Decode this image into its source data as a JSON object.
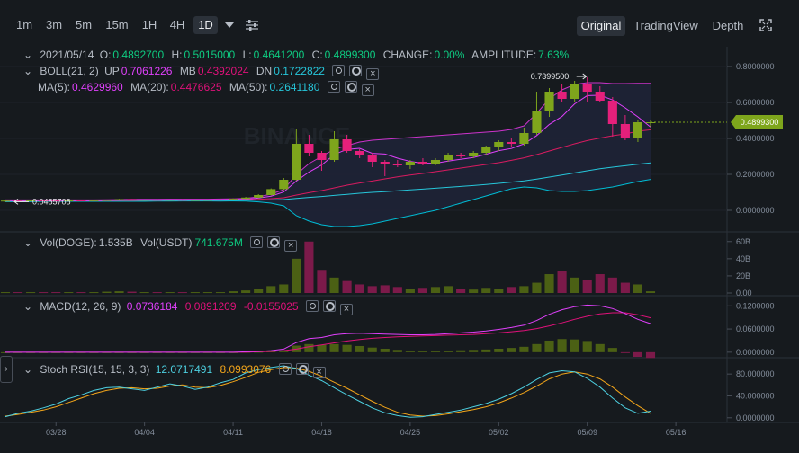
{
  "toolbar": {
    "timeframes": [
      "1m",
      "3m",
      "5m",
      "15m",
      "1H",
      "4H",
      "1D"
    ],
    "active_timeframe": "1D",
    "views": [
      "Original",
      "TradingView",
      "Depth"
    ],
    "active_view": "Original"
  },
  "ohlc": {
    "date": "2021/05/14",
    "o_label": "O:",
    "o": "0.4892700",
    "h_label": "H:",
    "h": "0.5015000",
    "l_label": "L:",
    "l": "0.4641200",
    "c_label": "C:",
    "c": "0.4899300",
    "change_label": "CHANGE:",
    "change": "0.00%",
    "amplitude_label": "AMPLITUDE:",
    "amplitude": "7.63%"
  },
  "boll": {
    "name": "BOLL(21, 2)",
    "up_label": "UP",
    "up": "0.7061226",
    "mb_label": "MB",
    "mb": "0.4392024",
    "dn_label": "DN",
    "dn": "0.1722822"
  },
  "ma": {
    "ma5_label": "MA(5):",
    "ma5": "0.4629960",
    "ma20_label": "MA(20):",
    "ma20": "0.4476625",
    "ma50_label": "MA(50):",
    "ma50": "0.2641180"
  },
  "vol": {
    "doge_label": "Vol(DOGE):",
    "doge": "1.535B",
    "usdt_label": "Vol(USDT)",
    "usdt": "741.675M"
  },
  "macd": {
    "name": "MACD(12, 26, 9)",
    "dif": "0.0736184",
    "dea": "0.0891209",
    "hist": "-0.0155025"
  },
  "stoch": {
    "name": "Stoch RSI(15, 15, 3, 3)",
    "k": "12.0717491",
    "d": "8.0993076"
  },
  "annotations": {
    "high_marker": "0.7399500",
    "low_marker": "0.0485708",
    "last_price": "0.4899300"
  },
  "colors": {
    "up": "#7ea51c",
    "down": "#e4207b",
    "boll": "#cc33cc",
    "mb": "#e0117a",
    "dn": "#00bcd4",
    "ma5": "#e040fb",
    "ma20": "#d81b60",
    "ma50": "#26c6da",
    "k": "#4dd0e1",
    "d": "#f2a51a"
  },
  "chart_data": [
    {
      "type": "candlestick",
      "title": "",
      "x_tick_labels": [
        "03/28",
        "04/04",
        "04/11",
        "04/18",
        "04/25",
        "05/02",
        "05/09",
        "05/16"
      ],
      "y_tick_labels": [
        "0.0000000",
        "0.2000000",
        "0.4000000",
        "0.6000000",
        "0.8000000"
      ],
      "ylim": [
        -0.08,
        0.86
      ],
      "candles": [
        {
          "date": "03/24",
          "o": 0.052,
          "h": 0.056,
          "l": 0.048,
          "c": 0.054
        },
        {
          "date": "03/25",
          "o": 0.054,
          "h": 0.057,
          "l": 0.05,
          "c": 0.053
        },
        {
          "date": "03/26",
          "o": 0.053,
          "h": 0.056,
          "l": 0.051,
          "c": 0.055
        },
        {
          "date": "03/27",
          "o": 0.055,
          "h": 0.057,
          "l": 0.052,
          "c": 0.054
        },
        {
          "date": "03/28",
          "o": 0.054,
          "h": 0.056,
          "l": 0.051,
          "c": 0.053
        },
        {
          "date": "03/29",
          "o": 0.053,
          "h": 0.056,
          "l": 0.051,
          "c": 0.055
        },
        {
          "date": "03/30",
          "o": 0.055,
          "h": 0.057,
          "l": 0.052,
          "c": 0.054
        },
        {
          "date": "03/31",
          "o": 0.054,
          "h": 0.057,
          "l": 0.052,
          "c": 0.056
        },
        {
          "date": "04/01",
          "o": 0.056,
          "h": 0.06,
          "l": 0.054,
          "c": 0.058
        },
        {
          "date": "04/02",
          "o": 0.058,
          "h": 0.064,
          "l": 0.056,
          "c": 0.062
        },
        {
          "date": "04/03",
          "o": 0.062,
          "h": 0.063,
          "l": 0.056,
          "c": 0.058
        },
        {
          "date": "04/04",
          "o": 0.058,
          "h": 0.06,
          "l": 0.055,
          "c": 0.059
        },
        {
          "date": "04/05",
          "o": 0.059,
          "h": 0.061,
          "l": 0.056,
          "c": 0.057
        },
        {
          "date": "04/06",
          "o": 0.057,
          "h": 0.06,
          "l": 0.055,
          "c": 0.059
        },
        {
          "date": "04/07",
          "o": 0.059,
          "h": 0.061,
          "l": 0.054,
          "c": 0.056
        },
        {
          "date": "04/08",
          "o": 0.056,
          "h": 0.059,
          "l": 0.055,
          "c": 0.058
        },
        {
          "date": "04/09",
          "o": 0.058,
          "h": 0.06,
          "l": 0.056,
          "c": 0.059
        },
        {
          "date": "04/10",
          "o": 0.059,
          "h": 0.062,
          "l": 0.057,
          "c": 0.06
        },
        {
          "date": "04/11",
          "o": 0.06,
          "h": 0.067,
          "l": 0.058,
          "c": 0.064
        },
        {
          "date": "04/12",
          "o": 0.064,
          "h": 0.075,
          "l": 0.062,
          "c": 0.071
        },
        {
          "date": "04/13",
          "o": 0.071,
          "h": 0.09,
          "l": 0.068,
          "c": 0.085
        },
        {
          "date": "04/14",
          "o": 0.085,
          "h": 0.122,
          "l": 0.083,
          "c": 0.118
        },
        {
          "date": "04/15",
          "o": 0.118,
          "h": 0.18,
          "l": 0.112,
          "c": 0.17
        },
        {
          "date": "04/16",
          "o": 0.17,
          "h": 0.45,
          "l": 0.165,
          "c": 0.37
        },
        {
          "date": "04/17",
          "o": 0.37,
          "h": 0.42,
          "l": 0.3,
          "c": 0.32
        },
        {
          "date": "04/18",
          "o": 0.32,
          "h": 0.33,
          "l": 0.22,
          "c": 0.28
        },
        {
          "date": "04/19",
          "o": 0.28,
          "h": 0.44,
          "l": 0.27,
          "c": 0.395
        },
        {
          "date": "04/20",
          "o": 0.395,
          "h": 0.42,
          "l": 0.32,
          "c": 0.33
        },
        {
          "date": "04/21",
          "o": 0.33,
          "h": 0.34,
          "l": 0.29,
          "c": 0.31
        },
        {
          "date": "04/22",
          "o": 0.31,
          "h": 0.32,
          "l": 0.24,
          "c": 0.27
        },
        {
          "date": "04/23",
          "o": 0.27,
          "h": 0.28,
          "l": 0.19,
          "c": 0.26
        },
        {
          "date": "04/24",
          "o": 0.26,
          "h": 0.28,
          "l": 0.24,
          "c": 0.25
        },
        {
          "date": "04/25",
          "o": 0.25,
          "h": 0.28,
          "l": 0.23,
          "c": 0.27
        },
        {
          "date": "04/26",
          "o": 0.27,
          "h": 0.29,
          "l": 0.25,
          "c": 0.26
        },
        {
          "date": "04/27",
          "o": 0.26,
          "h": 0.29,
          "l": 0.25,
          "c": 0.28
        },
        {
          "date": "04/28",
          "o": 0.28,
          "h": 0.32,
          "l": 0.27,
          "c": 0.31
        },
        {
          "date": "04/29",
          "o": 0.31,
          "h": 0.32,
          "l": 0.29,
          "c": 0.3
        },
        {
          "date": "04/30",
          "o": 0.3,
          "h": 0.33,
          "l": 0.29,
          "c": 0.32
        },
        {
          "date": "05/01",
          "o": 0.32,
          "h": 0.36,
          "l": 0.31,
          "c": 0.35
        },
        {
          "date": "05/02",
          "o": 0.35,
          "h": 0.39,
          "l": 0.33,
          "c": 0.38
        },
        {
          "date": "05/03",
          "o": 0.38,
          "h": 0.4,
          "l": 0.35,
          "c": 0.37
        },
        {
          "date": "05/04",
          "o": 0.37,
          "h": 0.46,
          "l": 0.36,
          "c": 0.43
        },
        {
          "date": "05/05",
          "o": 0.43,
          "h": 0.66,
          "l": 0.42,
          "c": 0.55
        },
        {
          "date": "05/06",
          "o": 0.55,
          "h": 0.68,
          "l": 0.52,
          "c": 0.66
        },
        {
          "date": "05/07",
          "o": 0.66,
          "h": 0.7,
          "l": 0.6,
          "c": 0.62
        },
        {
          "date": "05/08",
          "o": 0.62,
          "h": 0.72,
          "l": 0.6,
          "c": 0.7
        },
        {
          "date": "05/09",
          "o": 0.7,
          "h": 0.74,
          "l": 0.6,
          "c": 0.66
        },
        {
          "date": "05/10",
          "o": 0.66,
          "h": 0.69,
          "l": 0.6,
          "c": 0.61
        },
        {
          "date": "05/11",
          "o": 0.61,
          "h": 0.63,
          "l": 0.41,
          "c": 0.48
        },
        {
          "date": "05/12",
          "o": 0.48,
          "h": 0.53,
          "l": 0.39,
          "c": 0.4
        },
        {
          "date": "05/13",
          "o": 0.4,
          "h": 0.5,
          "l": 0.38,
          "c": 0.49
        },
        {
          "date": "05/14",
          "o": 0.489,
          "h": 0.502,
          "l": 0.464,
          "c": 0.49
        }
      ],
      "boll_upper": [
        0.058,
        0.058,
        0.058,
        0.058,
        0.058,
        0.058,
        0.058,
        0.058,
        0.059,
        0.06,
        0.061,
        0.061,
        0.061,
        0.062,
        0.062,
        0.062,
        0.062,
        0.063,
        0.064,
        0.067,
        0.075,
        0.09,
        0.115,
        0.2,
        0.26,
        0.3,
        0.34,
        0.36,
        0.38,
        0.39,
        0.395,
        0.4,
        0.405,
        0.41,
        0.415,
        0.42,
        0.425,
        0.43,
        0.435,
        0.44,
        0.45,
        0.47,
        0.54,
        0.62,
        0.67,
        0.7,
        0.71,
        0.71,
        0.705,
        0.705,
        0.706,
        0.706
      ],
      "boll_mid": [
        0.054,
        0.054,
        0.054,
        0.054,
        0.054,
        0.054,
        0.054,
        0.054,
        0.054,
        0.055,
        0.055,
        0.056,
        0.056,
        0.057,
        0.057,
        0.057,
        0.057,
        0.057,
        0.058,
        0.059,
        0.061,
        0.065,
        0.07,
        0.085,
        0.098,
        0.11,
        0.125,
        0.14,
        0.152,
        0.163,
        0.175,
        0.186,
        0.196,
        0.205,
        0.215,
        0.225,
        0.235,
        0.245,
        0.255,
        0.265,
        0.278,
        0.292,
        0.31,
        0.33,
        0.35,
        0.37,
        0.388,
        0.402,
        0.415,
        0.425,
        0.433,
        0.439
      ],
      "boll_lower": [
        0.05,
        0.05,
        0.05,
        0.05,
        0.05,
        0.05,
        0.05,
        0.05,
        0.05,
        0.05,
        0.05,
        0.05,
        0.051,
        0.051,
        0.052,
        0.052,
        0.052,
        0.051,
        0.052,
        0.051,
        0.047,
        0.04,
        0.025,
        -0.03,
        -0.06,
        -0.08,
        -0.09,
        -0.09,
        -0.085,
        -0.075,
        -0.06,
        -0.045,
        -0.03,
        -0.015,
        0.0,
        0.02,
        0.04,
        0.06,
        0.08,
        0.1,
        0.12,
        0.13,
        0.125,
        0.11,
        0.105,
        0.105,
        0.11,
        0.12,
        0.13,
        0.145,
        0.16,
        0.172
      ],
      "ma5": [
        0.054,
        0.054,
        0.054,
        0.054,
        0.054,
        0.054,
        0.054,
        0.054,
        0.055,
        0.057,
        0.058,
        0.059,
        0.059,
        0.059,
        0.058,
        0.058,
        0.058,
        0.059,
        0.06,
        0.062,
        0.068,
        0.079,
        0.102,
        0.163,
        0.213,
        0.252,
        0.311,
        0.339,
        0.345,
        0.317,
        0.313,
        0.29,
        0.272,
        0.262,
        0.262,
        0.274,
        0.284,
        0.294,
        0.312,
        0.332,
        0.344,
        0.37,
        0.416,
        0.478,
        0.522,
        0.592,
        0.638,
        0.64,
        0.614,
        0.57,
        0.52,
        0.463
      ],
      "ma20": [
        0.054,
        0.054,
        0.054,
        0.054,
        0.054,
        0.054,
        0.054,
        0.054,
        0.054,
        0.055,
        0.055,
        0.056,
        0.056,
        0.057,
        0.057,
        0.057,
        0.057,
        0.057,
        0.058,
        0.059,
        0.061,
        0.065,
        0.07,
        0.085,
        0.098,
        0.11,
        0.125,
        0.14,
        0.152,
        0.163,
        0.175,
        0.186,
        0.196,
        0.205,
        0.215,
        0.225,
        0.235,
        0.245,
        0.255,
        0.265,
        0.278,
        0.292,
        0.31,
        0.33,
        0.35,
        0.37,
        0.388,
        0.402,
        0.415,
        0.425,
        0.44,
        0.448
      ],
      "ma50": [
        0.048,
        0.049,
        0.049,
        0.05,
        0.05,
        0.051,
        0.051,
        0.051,
        0.052,
        0.052,
        0.052,
        0.053,
        0.053,
        0.053,
        0.054,
        0.054,
        0.054,
        0.055,
        0.055,
        0.056,
        0.057,
        0.058,
        0.06,
        0.066,
        0.072,
        0.077,
        0.083,
        0.089,
        0.095,
        0.1,
        0.104,
        0.109,
        0.114,
        0.118,
        0.123,
        0.128,
        0.133,
        0.138,
        0.144,
        0.15,
        0.157,
        0.164,
        0.174,
        0.185,
        0.196,
        0.208,
        0.22,
        0.231,
        0.24,
        0.248,
        0.256,
        0.264
      ]
    },
    {
      "type": "bar",
      "title": "Vol(DOGE)",
      "y_tick_labels": [
        "0.00",
        "20B",
        "40B",
        "60B"
      ],
      "ylim": [
        0,
        65
      ],
      "unit": "B",
      "values": [
        1,
        1,
        1,
        1,
        1,
        1,
        1,
        1,
        1.5,
        2,
        1.5,
        1,
        1,
        1,
        1,
        1,
        1,
        1,
        2,
        3,
        5,
        8,
        10,
        40,
        60,
        27,
        18,
        14,
        10,
        8,
        9,
        7,
        5,
        6,
        7,
        8,
        5,
        4,
        6,
        5,
        7,
        8,
        12,
        22,
        26,
        18,
        15,
        22,
        18,
        12,
        10,
        2
      ],
      "colors_up_down": "up-down"
    },
    {
      "type": "line",
      "title": "MACD(12, 26, 9)",
      "y_tick_labels": [
        "0.0000000",
        "0.0600000",
        "0.1200000"
      ],
      "ylim": [
        -0.005,
        0.13
      ],
      "dif": [
        0,
        0,
        0,
        0,
        0,
        0,
        0,
        0,
        0,
        0,
        0,
        0,
        0,
        0,
        0,
        0,
        0,
        0,
        0,
        0.001,
        0.002,
        0.004,
        0.008,
        0.025,
        0.035,
        0.038,
        0.045,
        0.048,
        0.049,
        0.048,
        0.047,
        0.046,
        0.045,
        0.045,
        0.046,
        0.048,
        0.05,
        0.052,
        0.055,
        0.059,
        0.064,
        0.07,
        0.082,
        0.098,
        0.11,
        0.118,
        0.122,
        0.12,
        0.113,
        0.1,
        0.085,
        0.074
      ],
      "dea": [
        0,
        0,
        0,
        0,
        0,
        0,
        0,
        0,
        0,
        0,
        0,
        0,
        0,
        0,
        0,
        0,
        0,
        0,
        0,
        0.0,
        0.001,
        0.002,
        0.004,
        0.008,
        0.014,
        0.019,
        0.024,
        0.029,
        0.033,
        0.036,
        0.038,
        0.04,
        0.041,
        0.042,
        0.043,
        0.044,
        0.045,
        0.046,
        0.048,
        0.05,
        0.053,
        0.056,
        0.061,
        0.068,
        0.076,
        0.085,
        0.093,
        0.099,
        0.102,
        0.102,
        0.097,
        0.089
      ],
      "hist": [
        0,
        0,
        0,
        0,
        0,
        0,
        0,
        0,
        0,
        0,
        0,
        0,
        0,
        0,
        0,
        0,
        0,
        0,
        0,
        0.001,
        0.001,
        0.002,
        0.004,
        0.017,
        0.021,
        0.019,
        0.021,
        0.019,
        0.016,
        0.012,
        0.009,
        0.006,
        0.004,
        0.003,
        0.003,
        0.004,
        0.005,
        0.006,
        0.007,
        0.009,
        0.011,
        0.014,
        0.021,
        0.03,
        0.034,
        0.033,
        0.029,
        0.021,
        0.011,
        -0.002,
        -0.012,
        -0.015
      ]
    },
    {
      "type": "line",
      "title": "Stoch RSI(15, 15, 3, 3)",
      "y_tick_labels": [
        "0.0000000",
        "40.000000",
        "80.000000"
      ],
      "ylim": [
        -2,
        100
      ],
      "k": [
        2,
        8,
        12,
        18,
        25,
        35,
        42,
        50,
        55,
        56,
        53,
        50,
        56,
        62,
        58,
        52,
        56,
        64,
        70,
        82,
        88,
        92,
        95,
        90,
        78,
        68,
        55,
        42,
        30,
        18,
        9,
        4,
        1,
        2,
        6,
        10,
        14,
        20,
        26,
        34,
        44,
        56,
        70,
        82,
        86,
        84,
        72,
        56,
        36,
        18,
        8,
        12
      ],
      "d": [
        3,
        6,
        10,
        14,
        20,
        28,
        36,
        44,
        50,
        54,
        55,
        53,
        54,
        58,
        60,
        56,
        55,
        59,
        66,
        74,
        83,
        88,
        92,
        91,
        85,
        76,
        65,
        54,
        42,
        30,
        19,
        10,
        5,
        3,
        4,
        7,
        11,
        15,
        20,
        27,
        36,
        46,
        58,
        71,
        80,
        84,
        80,
        71,
        56,
        38,
        22,
        8
      ]
    }
  ]
}
